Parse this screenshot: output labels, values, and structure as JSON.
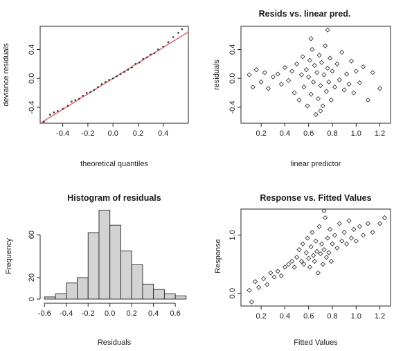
{
  "chart_data": [
    {
      "type": "scatter",
      "title": "",
      "xlabel": "theoretical quantiles",
      "ylabel": "deviance residuals",
      "xlim": [
        -0.58,
        0.6
      ],
      "ylim": [
        -0.62,
        0.72
      ],
      "xticks": [
        -0.4,
        -0.2,
        0.0,
        0.2,
        0.4
      ],
      "xtick_labels": [
        "-0.4",
        "-0.2",
        "0.0",
        "0.2",
        "0.4"
      ],
      "yticks": [
        -0.4,
        0.0,
        0.4
      ],
      "ytick_labels": [
        "-0.4",
        "0.0",
        "0.4"
      ],
      "reference_line": {
        "slope": 1.07,
        "intercept": 0.0,
        "color": "#e0707a"
      },
      "point_color": "#333333",
      "points": [
        [
          -0.55,
          -0.6
        ],
        [
          -0.5,
          -0.5
        ],
        [
          -0.47,
          -0.47
        ],
        [
          -0.44,
          -0.45
        ],
        [
          -0.4,
          -0.42
        ],
        [
          -0.36,
          -0.38
        ],
        [
          -0.33,
          -0.32
        ],
        [
          -0.3,
          -0.3
        ],
        [
          -0.27,
          -0.28
        ],
        [
          -0.24,
          -0.24
        ],
        [
          -0.21,
          -0.2
        ],
        [
          -0.18,
          -0.19
        ],
        [
          -0.15,
          -0.16
        ],
        [
          -0.12,
          -0.12
        ],
        [
          -0.09,
          -0.08
        ],
        [
          -0.06,
          -0.05
        ],
        [
          -0.03,
          -0.02
        ],
        [
          0.0,
          0.0
        ],
        [
          0.03,
          0.03
        ],
        [
          0.06,
          0.06
        ],
        [
          0.09,
          0.09
        ],
        [
          0.12,
          0.12
        ],
        [
          0.15,
          0.15
        ],
        [
          0.18,
          0.2
        ],
        [
          0.21,
          0.22
        ],
        [
          0.24,
          0.27
        ],
        [
          0.27,
          0.29
        ],
        [
          0.3,
          0.33
        ],
        [
          0.33,
          0.35
        ],
        [
          0.36,
          0.4
        ],
        [
          0.4,
          0.44
        ],
        [
          0.44,
          0.5
        ],
        [
          0.48,
          0.57
        ],
        [
          0.52,
          0.63
        ],
        [
          0.55,
          0.68
        ]
      ]
    },
    {
      "type": "scatter",
      "title": "Resids vs. linear pred.",
      "xlabel": "linear predictor",
      "ylabel": "residuals",
      "xlim": [
        0.03,
        1.29
      ],
      "ylim": [
        -0.62,
        0.72
      ],
      "xticks": [
        0.2,
        0.4,
        0.6,
        0.8,
        1.0,
        1.2
      ],
      "xtick_labels": [
        "0.2",
        "0.4",
        "0.6",
        "0.8",
        "1.0",
        "1.2"
      ],
      "yticks": [
        -0.4,
        0.0,
        0.4
      ],
      "ytick_labels": [
        "-0.4",
        "0.0",
        "0.4"
      ],
      "marker": "diamond-open",
      "points": [
        [
          0.1,
          0.05
        ],
        [
          0.13,
          -0.12
        ],
        [
          0.16,
          0.12
        ],
        [
          0.2,
          -0.05
        ],
        [
          0.23,
          0.08
        ],
        [
          0.26,
          -0.14
        ],
        [
          0.3,
          0.02
        ],
        [
          0.34,
          0.06
        ],
        [
          0.37,
          -0.08
        ],
        [
          0.4,
          0.15
        ],
        [
          0.43,
          -0.03
        ],
        [
          0.46,
          0.1
        ],
        [
          0.48,
          -0.2
        ],
        [
          0.5,
          0.2
        ],
        [
          0.52,
          -0.3
        ],
        [
          0.54,
          0.05
        ],
        [
          0.55,
          0.3
        ],
        [
          0.56,
          -0.12
        ],
        [
          0.58,
          0.12
        ],
        [
          0.59,
          -0.38
        ],
        [
          0.6,
          0.02
        ],
        [
          0.61,
          0.25
        ],
        [
          0.62,
          -0.22
        ],
        [
          0.63,
          0.4
        ],
        [
          0.64,
          -0.05
        ],
        [
          0.65,
          0.18
        ],
        [
          0.66,
          -0.5
        ],
        [
          0.67,
          0.08
        ],
        [
          0.68,
          -0.28
        ],
        [
          0.69,
          0.32
        ],
        [
          0.7,
          -0.1
        ],
        [
          0.71,
          0.22
        ],
        [
          0.72,
          -0.38
        ],
        [
          0.73,
          0.05
        ],
        [
          0.74,
          0.45
        ],
        [
          0.75,
          -0.18
        ],
        [
          0.76,
          0.14
        ],
        [
          0.77,
          -0.05
        ],
        [
          0.78,
          0.28
        ],
        [
          0.79,
          -0.3
        ],
        [
          0.8,
          0.1
        ],
        [
          0.82,
          -0.12
        ],
        [
          0.84,
          0.2
        ],
        [
          0.86,
          -0.02
        ],
        [
          0.88,
          0.36
        ],
        [
          0.9,
          -0.16
        ],
        [
          0.92,
          0.06
        ],
        [
          0.94,
          -0.08
        ],
        [
          0.96,
          0.24
        ],
        [
          0.98,
          -0.2
        ],
        [
          1.0,
          0.1
        ],
        [
          1.03,
          -0.06
        ],
        [
          1.06,
          0.16
        ],
        [
          1.1,
          -0.3
        ],
        [
          1.14,
          0.08
        ],
        [
          1.2,
          -0.14
        ],
        [
          0.76,
          0.67
        ],
        [
          0.62,
          0.55
        ],
        [
          0.7,
          -0.45
        ]
      ]
    },
    {
      "type": "bar",
      "title": "Histogram of residuals",
      "xlabel": "Residuals",
      "ylabel": "Frequency",
      "xlim": [
        -0.64,
        0.72
      ],
      "ylim": [
        0,
        84
      ],
      "bin_edges": [
        -0.6,
        -0.5,
        -0.4,
        -0.3,
        -0.2,
        -0.1,
        0.0,
        0.1,
        0.2,
        0.3,
        0.4,
        0.5,
        0.6,
        0.7
      ],
      "values": [
        2,
        5,
        15,
        20,
        62,
        83,
        69,
        45,
        32,
        14,
        9,
        5,
        3
      ],
      "bar_color": "#d3d3d3",
      "xticks": [
        -0.6,
        -0.4,
        -0.2,
        0.0,
        0.2,
        0.4,
        0.6
      ],
      "xtick_labels": [
        "-0.6",
        "-0.4",
        "-0.2",
        "0.0",
        "0.2",
        "0.4",
        "0.6"
      ],
      "yticks": [
        0,
        20,
        60
      ],
      "ytick_labels": [
        "0",
        "20",
        "60"
      ]
    },
    {
      "type": "scatter",
      "title": "Response vs. Fitted Values",
      "xlabel": "Fitted Values",
      "ylabel": "Response",
      "xlim": [
        0.03,
        1.29
      ],
      "ylim": [
        -0.22,
        1.45
      ],
      "xticks": [
        0.2,
        0.4,
        0.6,
        0.8,
        1.0,
        1.2
      ],
      "xtick_labels": [
        "0.2",
        "0.4",
        "0.6",
        "0.8",
        "1.0",
        "1.2"
      ],
      "yticks": [
        0.0,
        1.0
      ],
      "ytick_labels": [
        "0.0",
        "1.0"
      ],
      "marker": "diamond-open",
      "points": [
        [
          0.1,
          0.05
        ],
        [
          0.12,
          -0.15
        ],
        [
          0.15,
          0.2
        ],
        [
          0.18,
          0.1
        ],
        [
          0.22,
          0.25
        ],
        [
          0.25,
          0.15
        ],
        [
          0.28,
          0.35
        ],
        [
          0.31,
          0.28
        ],
        [
          0.34,
          0.38
        ],
        [
          0.37,
          0.3
        ],
        [
          0.4,
          0.45
        ],
        [
          0.43,
          0.5
        ],
        [
          0.46,
          0.55
        ],
        [
          0.48,
          0.45
        ],
        [
          0.5,
          0.62
        ],
        [
          0.52,
          0.75
        ],
        [
          0.54,
          0.55
        ],
        [
          0.55,
          0.85
        ],
        [
          0.56,
          0.5
        ],
        [
          0.58,
          0.7
        ],
        [
          0.59,
          0.95
        ],
        [
          0.6,
          0.6
        ],
        [
          0.61,
          0.45
        ],
        [
          0.62,
          0.8
        ],
        [
          0.63,
          1.05
        ],
        [
          0.64,
          0.65
        ],
        [
          0.65,
          0.55
        ],
        [
          0.66,
          0.9
        ],
        [
          0.67,
          0.72
        ],
        [
          0.68,
          0.35
        ],
        [
          0.69,
          1.15
        ],
        [
          0.7,
          0.68
        ],
        [
          0.71,
          0.85
        ],
        [
          0.72,
          0.5
        ],
        [
          0.73,
          0.75
        ],
        [
          0.74,
          1.3
        ],
        [
          0.75,
          0.62
        ],
        [
          0.76,
          0.95
        ],
        [
          0.77,
          0.7
        ],
        [
          0.78,
          1.1
        ],
        [
          0.79,
          0.55
        ],
        [
          0.8,
          0.85
        ],
        [
          0.82,
          1.0
        ],
        [
          0.84,
          0.78
        ],
        [
          0.86,
          1.2
        ],
        [
          0.88,
          0.9
        ],
        [
          0.9,
          1.05
        ],
        [
          0.92,
          0.85
        ],
        [
          0.94,
          1.25
        ],
        [
          0.96,
          0.95
        ],
        [
          0.98,
          1.1
        ],
        [
          1.0,
          0.9
        ],
        [
          1.03,
          1.15
        ],
        [
          1.06,
          1.0
        ],
        [
          1.1,
          1.2
        ],
        [
          1.14,
          1.05
        ],
        [
          1.2,
          1.2
        ],
        [
          1.24,
          1.3
        ],
        [
          0.73,
          1.42
        ]
      ]
    }
  ]
}
